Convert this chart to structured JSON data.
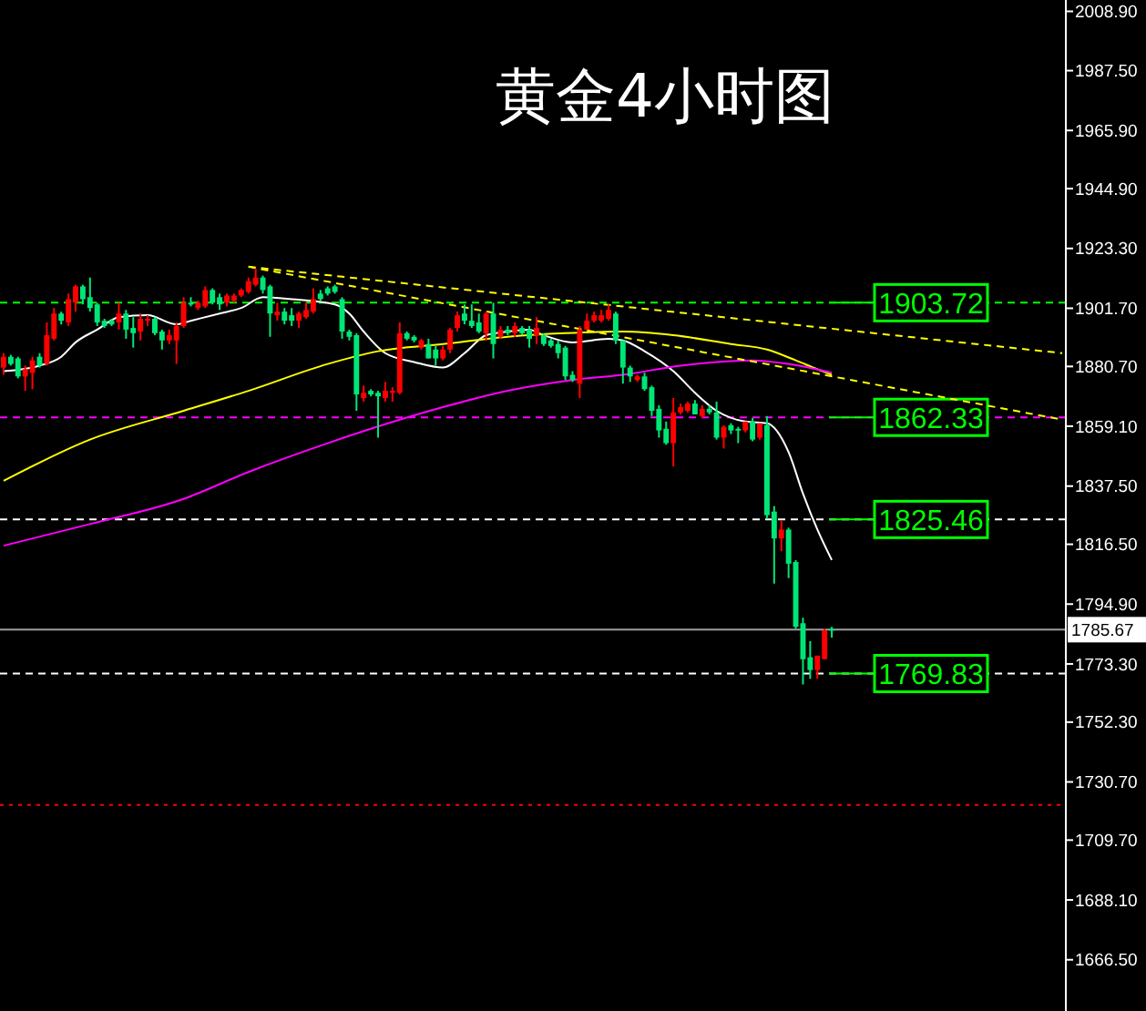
{
  "chart_data": {
    "type": "candlestick",
    "title": "黄金4小时图",
    "categories": [
      null,
      null,
      null,
      null,
      null,
      null,
      null,
      null,
      null,
      null,
      null,
      null,
      null,
      null,
      null,
      null,
      null,
      null,
      null,
      null,
      null,
      null,
      null,
      null,
      null,
      null,
      null,
      null,
      null,
      null,
      null,
      null,
      null,
      null,
      null,
      null,
      null,
      null,
      null,
      null,
      null,
      null,
      null,
      null,
      null,
      null,
      null,
      null,
      null,
      null,
      null,
      null,
      null,
      null,
      null,
      null,
      null,
      null,
      null,
      null,
      null,
      null,
      null,
      null,
      null,
      null,
      null,
      null,
      null,
      null,
      null,
      null,
      null,
      null,
      null,
      null,
      null,
      null,
      null,
      null,
      null,
      null,
      null,
      null,
      null,
      null,
      null,
      null,
      null,
      null,
      null,
      null,
      null,
      null,
      null,
      null,
      null,
      null,
      null,
      null,
      null,
      null,
      null,
      null,
      null,
      null,
      null,
      null,
      null,
      null,
      null,
      null,
      null,
      null,
      null,
      null,
      null,
      null,
      null,
      null,
      null,
      null,
      null,
      null,
      null,
      null,
      null,
      null,
      null,
      null,
      null,
      null,
      null,
      null,
      null,
      null,
      null,
      null,
      null,
      null,
      null,
      null,
      null,
      null,
      null,
      null,
      null,
      null
    ],
    "ohlc": [
      [
        1880.3,
        1885.5,
        1877.7,
        1884.2
      ],
      [
        1884.2,
        1884.9,
        1881.0,
        1881.6
      ],
      [
        1883.6,
        1884.2,
        1876.4,
        1877.1
      ],
      [
        1877.1,
        1881.0,
        1871.9,
        1879.7
      ],
      [
        1878.4,
        1884.2,
        1872.5,
        1882.9
      ],
      [
        1884.2,
        1885.5,
        1880.3,
        1881.0
      ],
      [
        1881.6,
        1896.6,
        1881.0,
        1892.0
      ],
      [
        1890.7,
        1901.8,
        1890.1,
        1899.8
      ],
      [
        1899.8,
        1900.5,
        1895.9,
        1897.2
      ],
      [
        1896.6,
        1907.0,
        1895.3,
        1905.0
      ],
      [
        1903.7,
        1910.2,
        1900.5,
        1909.6
      ],
      [
        1909.6,
        1910.2,
        1903.1,
        1905.0
      ],
      [
        1905.7,
        1912.8,
        1900.5,
        1901.8
      ],
      [
        1903.1,
        1903.7,
        1895.3,
        1896.6
      ],
      [
        1897.2,
        1897.9,
        1894.6,
        1895.3
      ],
      [
        1897.2,
        1897.9,
        1895.3,
        1895.9
      ],
      [
        1896.6,
        1903.7,
        1894.0,
        1899.8
      ],
      [
        1899.8,
        1901.1,
        1890.7,
        1894.0
      ],
      [
        1894.6,
        1898.5,
        1887.5,
        1892.7
      ],
      [
        1893.3,
        1899.8,
        1890.1,
        1897.9
      ],
      [
        1897.2,
        1899.2,
        1895.3,
        1897.9
      ],
      [
        1897.9,
        1898.5,
        1892.0,
        1892.7
      ],
      [
        1893.3,
        1894.0,
        1886.8,
        1890.1
      ],
      [
        1890.1,
        1894.0,
        1888.8,
        1892.0
      ],
      [
        1890.1,
        1896.6,
        1881.6,
        1895.3
      ],
      [
        1895.3,
        1905.7,
        1894.6,
        1903.7
      ],
      [
        1903.7,
        1905.7,
        1902.4,
        1903.1
      ],
      [
        1901.8,
        1904.4,
        1901.1,
        1903.7
      ],
      [
        1902.4,
        1909.6,
        1901.8,
        1908.3
      ],
      [
        1908.3,
        1908.9,
        1903.1,
        1903.7
      ],
      [
        1905.7,
        1907.0,
        1901.1,
        1903.1
      ],
      [
        1903.7,
        1907.0,
        1902.4,
        1906.3
      ],
      [
        1904.4,
        1907.0,
        1903.7,
        1906.3
      ],
      [
        1906.3,
        1908.9,
        1905.7,
        1908.3
      ],
      [
        1907.6,
        1912.8,
        1907.0,
        1911.5
      ],
      [
        1910.2,
        1916.1,
        1909.6,
        1912.8
      ],
      [
        1912.8,
        1913.5,
        1907.0,
        1908.3
      ],
      [
        1909.6,
        1910.2,
        1891.4,
        1899.8
      ],
      [
        1899.2,
        1903.7,
        1897.2,
        1900.5
      ],
      [
        1900.5,
        1901.8,
        1895.9,
        1897.2
      ],
      [
        1899.2,
        1901.8,
        1895.3,
        1897.2
      ],
      [
        1897.2,
        1900.5,
        1894.6,
        1899.8
      ],
      [
        1898.5,
        1903.7,
        1897.9,
        1901.1
      ],
      [
        1900.5,
        1908.9,
        1899.8,
        1905.0
      ],
      [
        1907.0,
        1908.3,
        1904.4,
        1905.0
      ],
      [
        1908.9,
        1909.6,
        1906.3,
        1907.0
      ],
      [
        1909.6,
        1910.2,
        1907.0,
        1907.6
      ],
      [
        1905.0,
        1905.7,
        1890.7,
        1893.3
      ],
      [
        1893.3,
        1894.0,
        1890.1,
        1891.4
      ],
      [
        1892.0,
        1892.7,
        1864.7,
        1870.6
      ],
      [
        1869.3,
        1873.8,
        1868.0,
        1871.2
      ],
      [
        1871.9,
        1872.5,
        1869.9,
        1870.6
      ],
      [
        1871.2,
        1871.9,
        1855.0,
        1869.9
      ],
      [
        1869.3,
        1875.1,
        1868.0,
        1871.9
      ],
      [
        1871.2,
        1873.2,
        1868.0,
        1871.9
      ],
      [
        1871.2,
        1896.6,
        1870.6,
        1892.7
      ],
      [
        1892.7,
        1893.3,
        1890.1,
        1890.7
      ],
      [
        1891.4,
        1892.0,
        1889.4,
        1890.1
      ],
      [
        1887.5,
        1890.7,
        1886.8,
        1890.1
      ],
      [
        1888.8,
        1890.7,
        1883.6,
        1883.6
      ],
      [
        1886.8,
        1888.1,
        1881.0,
        1883.6
      ],
      [
        1883.6,
        1888.1,
        1882.9,
        1886.8
      ],
      [
        1886.8,
        1894.6,
        1885.5,
        1894.0
      ],
      [
        1894.6,
        1900.5,
        1893.3,
        1899.2
      ],
      [
        1899.8,
        1903.1,
        1895.9,
        1897.2
      ],
      [
        1897.2,
        1903.1,
        1894.6,
        1895.3
      ],
      [
        1896.6,
        1899.8,
        1892.7,
        1893.3
      ],
      [
        1892.7,
        1900.5,
        1890.1,
        1899.8
      ],
      [
        1899.8,
        1903.7,
        1883.6,
        1888.8
      ],
      [
        1891.4,
        1895.3,
        1890.7,
        1894.0
      ],
      [
        1894.0,
        1895.3,
        1892.0,
        1892.7
      ],
      [
        1892.7,
        1896.6,
        1891.4,
        1895.3
      ],
      [
        1894.6,
        1895.3,
        1892.0,
        1892.7
      ],
      [
        1894.0,
        1895.3,
        1887.5,
        1890.7
      ],
      [
        1892.0,
        1898.5,
        1888.8,
        1894.6
      ],
      [
        1892.0,
        1892.7,
        1888.1,
        1888.8
      ],
      [
        1890.1,
        1890.7,
        1887.5,
        1888.1
      ],
      [
        1888.8,
        1890.1,
        1883.6,
        1885.5
      ],
      [
        1887.5,
        1888.1,
        1875.8,
        1877.1
      ],
      [
        1877.7,
        1879.0,
        1875.1,
        1875.8
      ],
      [
        1874.5,
        1895.3,
        1869.3,
        1894.0
      ],
      [
        1894.0,
        1899.8,
        1894.0,
        1897.2
      ],
      [
        1897.2,
        1900.5,
        1896.6,
        1899.2
      ],
      [
        1897.2,
        1901.1,
        1896.6,
        1899.2
      ],
      [
        1897.9,
        1903.1,
        1897.2,
        1901.1
      ],
      [
        1899.8,
        1900.5,
        1888.8,
        1890.1
      ],
      [
        1890.1,
        1890.1,
        1874.5,
        1880.3
      ],
      [
        1880.3,
        1881.0,
        1875.1,
        1877.1
      ],
      [
        1875.8,
        1877.7,
        1875.1,
        1877.1
      ],
      [
        1877.1,
        1878.4,
        1871.9,
        1872.5
      ],
      [
        1873.2,
        1873.8,
        1862.8,
        1864.7
      ],
      [
        1865.4,
        1866.7,
        1855.0,
        1857.6
      ],
      [
        1858.2,
        1860.8,
        1852.4,
        1853.0
      ],
      [
        1853.0,
        1869.3,
        1844.6,
        1864.1
      ],
      [
        1864.1,
        1867.3,
        1863.4,
        1866.0
      ],
      [
        1864.7,
        1868.0,
        1864.1,
        1867.3
      ],
      [
        1867.3,
        1868.6,
        1863.4,
        1863.4
      ],
      [
        1862.8,
        1866.7,
        1862.1,
        1865.4
      ],
      [
        1865.4,
        1866.7,
        1863.4,
        1864.1
      ],
      [
        1864.1,
        1868.0,
        1854.3,
        1855.0
      ],
      [
        1855.0,
        1859.5,
        1851.1,
        1858.9
      ],
      [
        1859.5,
        1860.2,
        1856.3,
        1857.6
      ],
      [
        1858.2,
        1858.9,
        1853.0,
        1857.6
      ],
      [
        1857.6,
        1860.8,
        1856.9,
        1860.8
      ],
      [
        1860.8,
        1862.1,
        1853.7,
        1854.3
      ],
      [
        1855.0,
        1860.2,
        1854.3,
        1860.2
      ],
      [
        1859.5,
        1862.8,
        1825.7,
        1827.0
      ],
      [
        1828.3,
        1830.3,
        1802.3,
        1818.6
      ],
      [
        1818.6,
        1825.1,
        1814.0,
        1821.8
      ],
      [
        1821.8,
        1822.5,
        1804.3,
        1809.5
      ],
      [
        1810.1,
        1810.8,
        1786.1,
        1786.7
      ],
      [
        1788.0,
        1790.0,
        1765.9,
        1775.0
      ],
      [
        1775.7,
        1781.5,
        1767.9,
        1771.1
      ],
      [
        1771.1,
        1776.3,
        1767.9,
        1776.3
      ],
      [
        1775.0,
        1786.1,
        1775.0,
        1785.4
      ],
      [
        1786.0,
        1786.7,
        1782.8,
        1785.67
      ],
      null,
      null,
      null,
      null,
      null,
      null,
      null,
      null,
      null,
      null,
      null,
      null,
      null,
      null,
      null,
      null,
      null,
      null,
      null,
      null,
      null,
      null,
      null,
      null,
      null,
      null,
      null,
      null,
      null,
      null,
      null,
      null
    ],
    "colors": [
      "#ff0000",
      "#00e676",
      "#00e676",
      "#ff0000",
      "#ff0000",
      "#00e676",
      "#ff0000",
      "#ff0000",
      "#00e676",
      "#ff0000",
      "#ff0000",
      "#00e676",
      "#00e676",
      "#00e676",
      "#00e676",
      "#00e676",
      "#ff0000",
      "#00e676",
      "#00e676",
      "#ff0000",
      "#ff0000",
      "#00e676",
      "#00e676",
      "#ff0000",
      "#ff0000",
      "#ff0000",
      "#00e676",
      "#ff0000",
      "#ff0000",
      "#00e676",
      "#00e676",
      "#ff0000",
      "#ff0000",
      "#ff0000",
      "#ff0000",
      "#ff0000",
      "#00e676",
      "#00e676",
      "#ff0000",
      "#00e676",
      "#00e676",
      "#ff0000",
      "#ff0000",
      "#ff0000",
      "#00e676",
      "#00e676",
      "#00e676",
      "#00e676",
      "#00e676",
      "#00e676",
      "#ff0000",
      "#00e676",
      "#00e676",
      "#ff0000",
      "#ff0000",
      "#ff0000",
      "#00e676",
      "#00e676",
      "#ff0000",
      "#00e676",
      "#00e676",
      "#ff0000",
      "#ff0000",
      "#ff0000",
      "#00e676",
      "#00e676",
      "#00e676",
      "#ff0000",
      "#00e676",
      "#ff0000",
      "#00e676",
      "#ff0000",
      "#00e676",
      "#00e676",
      "#ff0000",
      "#00e676",
      "#00e676",
      "#00e676",
      "#00e676",
      "#00e676",
      "#ff0000",
      "#ff0000",
      "#ff0000",
      "#ff0000",
      "#ff0000",
      "#00e676",
      "#00e676",
      "#00e676",
      "#ff0000",
      "#00e676",
      "#00e676",
      "#00e676",
      "#00e676",
      "#ff0000",
      "#ff0000",
      "#ff0000",
      "#00e676",
      "#ff0000",
      "#00e676",
      "#00e676",
      "#ff0000",
      "#00e676",
      "#00e676",
      "#ff0000",
      "#00e676",
      "#ff0000",
      "#00e676",
      "#00e676",
      "#ff0000",
      "#00e676",
      "#00e676",
      "#00e676",
      "#00e676",
      "#ff0000",
      "#ff0000",
      "#00e676",
      null,
      null,
      null,
      null,
      null,
      null,
      null,
      null,
      null,
      null,
      null,
      null,
      null,
      null,
      null,
      null,
      null,
      null,
      null,
      null,
      null,
      null,
      null,
      null,
      null,
      null,
      null,
      null,
      null,
      null,
      null,
      null
    ],
    "series": [
      {
        "type": "line",
        "color": "#ffffff",
        "line_style": "solid",
        "values": [
          1879.0,
          null,
          null,
          null,
          null,
          1881.0,
          null,
          null,
          1884.2,
          null,
          1889.4,
          null,
          null,
          1894.0,
          null,
          null,
          1898.5,
          null,
          null,
          null,
          1899.2,
          null,
          null,
          null,
          1895.9,
          null,
          1897.2,
          null,
          null,
          null,
          1899.8,
          null,
          null,
          1901.8,
          null,
          null,
          1905.7,
          null,
          null,
          null,
          1905.0,
          null,
          null,
          null,
          null,
          null,
          1903.1,
          null,
          1899.8,
          null,
          1893.3,
          null,
          null,
          1885.5,
          null,
          null,
          null,
          1882.3,
          null,
          null,
          null,
          1880.3,
          null,
          null,
          1885.5,
          null,
          null,
          1892.0,
          null,
          null,
          1893.3,
          null,
          null,
          1894.0,
          null,
          1892.0,
          null,
          null,
          null,
          1889.4,
          null,
          null,
          null,
          null,
          1890.7,
          null,
          1890.1,
          null,
          null,
          1886.2,
          null,
          null,
          null,
          1879.0,
          null,
          null,
          1871.2,
          null,
          null,
          1864.7,
          null,
          null,
          null,
          1860.8,
          null,
          null,
          1860.2,
          null,
          null,
          1849.8,
          null,
          1834.8,
          null,
          1821.8,
          null,
          1810.8,
          null,
          null,
          null,
          null,
          null,
          null,
          null,
          null,
          null,
          null,
          null,
          null,
          null,
          null,
          null,
          null,
          null,
          null,
          null,
          null,
          null,
          null,
          null,
          null,
          null,
          null,
          null,
          null,
          null,
          null,
          null,
          null
        ]
      },
      {
        "type": "line",
        "color": "#ffff00",
        "line_style": "solid",
        "values": [
          1839.4,
          null,
          null,
          null,
          null,
          null,
          null,
          null,
          null,
          null,
          null,
          null,
          1854.3,
          null,
          null,
          null,
          null,
          null,
          null,
          null,
          null,
          null,
          null,
          null,
          null,
          1864.7,
          null,
          null,
          null,
          null,
          null,
          null,
          null,
          null,
          1871.9,
          null,
          null,
          null,
          null,
          null,
          null,
          null,
          null,
          null,
          null,
          1881.6,
          null,
          null,
          null,
          null,
          null,
          null,
          1886.2,
          null,
          null,
          null,
          null,
          null,
          null,
          null,
          null,
          1888.8,
          null,
          null,
          null,
          null,
          null,
          null,
          null,
          null,
          1891.4,
          null,
          null,
          null,
          null,
          null,
          null,
          null,
          1892.7,
          null,
          null,
          null,
          null,
          null,
          null,
          null,
          1893.3,
          null,
          null,
          null,
          null,
          null,
          null,
          1892.0,
          null,
          null,
          null,
          null,
          null,
          null,
          null,
          1888.8,
          null,
          null,
          null,
          null,
          1886.8,
          null,
          null,
          null,
          1882.9,
          null,
          null,
          1879.7,
          null,
          1877.7,
          null,
          null,
          null,
          null,
          null,
          null,
          null,
          null,
          null,
          null,
          null,
          null,
          null,
          null,
          null,
          null,
          null,
          null,
          null,
          null,
          null,
          null,
          null,
          null,
          null,
          null,
          null,
          null,
          null,
          null,
          null,
          null
        ]
      },
      {
        "type": "line",
        "color": "#ff00ff",
        "line_style": "solid",
        "values": [
          1816.0,
          null,
          null,
          null,
          null,
          null,
          null,
          null,
          null,
          null,
          null,
          null,
          1823.8,
          null,
          null,
          null,
          null,
          null,
          null,
          null,
          null,
          null,
          null,
          null,
          null,
          1832.9,
          null,
          null,
          null,
          null,
          null,
          null,
          null,
          null,
          1842.6,
          null,
          null,
          null,
          null,
          null,
          null,
          null,
          null,
          null,
          null,
          1853.0,
          null,
          null,
          null,
          null,
          null,
          null,
          null,
          null,
          null,
          null,
          null,
          null,
          null,
          null,
          null,
          1866.0,
          null,
          null,
          null,
          null,
          null,
          null,
          null,
          null,
          1871.9,
          null,
          null,
          null,
          null,
          null,
          null,
          null,
          null,
          1875.8,
          null,
          null,
          null,
          null,
          null,
          null,
          1877.7,
          null,
          null,
          null,
          null,
          null,
          null,
          null,
          1881.0,
          null,
          null,
          null,
          null,
          null,
          null,
          null,
          null,
          null,
          1882.9,
          null,
          null,
          null,
          null,
          1881.6,
          null,
          null,
          null,
          null,
          null,
          1878.4,
          null,
          null,
          null,
          null,
          null,
          null,
          null,
          null,
          null,
          null,
          null,
          null,
          null,
          null,
          null,
          null,
          null,
          null,
          null,
          null,
          null,
          null,
          null,
          null,
          null,
          null,
          null,
          null,
          null,
          null,
          null,
          null
        ]
      },
      {
        "type": "line",
        "color": "#ffff00",
        "line_style": "dashed",
        "values": [
          null,
          null,
          null,
          null,
          null,
          null,
          null,
          null,
          null,
          null,
          null,
          null,
          null,
          null,
          null,
          null,
          null,
          null,
          null,
          null,
          null,
          null,
          null,
          null,
          null,
          null,
          null,
          null,
          null,
          null,
          null,
          null,
          null,
          null,
          1916.7,
          null,
          null,
          null,
          null,
          null,
          null,
          null,
          null,
          null,
          null,
          null,
          null,
          null,
          null,
          null,
          null,
          null,
          null,
          null,
          null,
          null,
          null,
          null,
          null,
          null,
          null,
          null,
          null,
          null,
          null,
          null,
          null,
          null,
          null,
          null,
          null,
          null,
          null,
          null,
          null,
          null,
          null,
          null,
          null,
          null,
          null,
          null,
          null,
          null,
          null,
          null,
          null,
          null,
          null,
          null,
          null,
          null,
          null,
          null,
          null,
          null,
          null,
          null,
          null,
          null,
          null,
          null,
          null,
          null,
          null,
          null,
          null,
          null,
          null,
          null,
          null,
          null,
          null,
          null,
          null,
          null,
          null,
          null,
          null,
          null,
          null,
          null,
          null,
          null,
          null,
          null,
          null,
          null,
          null,
          null,
          null,
          null,
          null,
          null,
          null,
          null,
          null,
          null,
          null,
          null,
          null,
          null,
          null,
          null,
          null,
          null,
          null,
          1885.5
        ]
      },
      {
        "type": "line",
        "color": "#ffff00",
        "line_style": "dashed",
        "values": [
          null,
          null,
          null,
          null,
          null,
          null,
          null,
          null,
          null,
          null,
          null,
          null,
          null,
          null,
          null,
          null,
          null,
          null,
          null,
          null,
          null,
          null,
          null,
          null,
          null,
          null,
          null,
          null,
          null,
          null,
          null,
          null,
          null,
          null,
          1916.7,
          null,
          null,
          null,
          null,
          null,
          null,
          null,
          null,
          null,
          null,
          null,
          null,
          null,
          null,
          null,
          null,
          null,
          null,
          null,
          null,
          null,
          null,
          null,
          null,
          null,
          null,
          null,
          null,
          null,
          null,
          null,
          null,
          null,
          null,
          null,
          null,
          null,
          null,
          null,
          null,
          null,
          null,
          null,
          null,
          null,
          null,
          null,
          null,
          null,
          null,
          null,
          null,
          null,
          null,
          null,
          null,
          null,
          null,
          null,
          null,
          null,
          null,
          null,
          null,
          null,
          null,
          null,
          null,
          null,
          null,
          null,
          null,
          null,
          null,
          null,
          null,
          null,
          null,
          null,
          null,
          null,
          null,
          null,
          null,
          null,
          null,
          null,
          null,
          null,
          null,
          null,
          null,
          null,
          null,
          null,
          null,
          null,
          null,
          null,
          null,
          null,
          null,
          null,
          null,
          null,
          null,
          null,
          null,
          null,
          null,
          null,
          null,
          1861.5
        ]
      }
    ],
    "ylim": [
      1648,
      2013
    ],
    "yticks": [
      {
        "value": 2008.9,
        "label": "2008.90"
      },
      {
        "value": 1987.5,
        "label": "1987.50"
      },
      {
        "value": 1965.9,
        "label": "1965.90"
      },
      {
        "value": 1944.9,
        "label": "1944.90"
      },
      {
        "value": 1923.3,
        "label": "1923.30"
      },
      {
        "value": 1901.7,
        "label": "1901.70"
      },
      {
        "value": 1880.7,
        "label": "1880.70"
      },
      {
        "value": 1859.1,
        "label": "1859.10"
      },
      {
        "value": 1837.5,
        "label": "1837.50"
      },
      {
        "value": 1816.5,
        "label": "1816.50"
      },
      {
        "value": 1794.9,
        "label": "1794.90"
      },
      {
        "value": 1773.3,
        "label": "1773.30"
      },
      {
        "value": 1752.3,
        "label": "1752.30"
      },
      {
        "value": 1730.7,
        "label": "1730.70"
      },
      {
        "value": 1709.7,
        "label": "1709.70"
      },
      {
        "value": 1688.1,
        "label": "1688.10"
      },
      {
        "value": 1666.5,
        "label": "1666.50"
      }
    ],
    "ref_lines": [
      {
        "axis": "y",
        "value": 1903.72,
        "label": "1903.72",
        "color": "#00ff00",
        "line_style": "dashed"
      },
      {
        "axis": "y",
        "value": 1862.33,
        "label": "1862.33",
        "color": "#ff00ff",
        "line_style": "dashed"
      },
      {
        "axis": "y",
        "value": 1825.46,
        "label": "1825.46",
        "color": "#ffffff",
        "line_style": "dashed"
      },
      {
        "axis": "y",
        "value": 1769.83,
        "label": "1769.83",
        "color": "#ffffff",
        "line_style": "dashed"
      },
      {
        "axis": "y",
        "value": 1785.67,
        "label": "1785.67",
        "color": "#9e9e9e",
        "line_style": "solid"
      },
      {
        "axis": "y",
        "value": 1722.4,
        "label": null,
        "color": "#ff0000",
        "line_style": "dotted"
      }
    ],
    "tick_labels": "y"
  }
}
